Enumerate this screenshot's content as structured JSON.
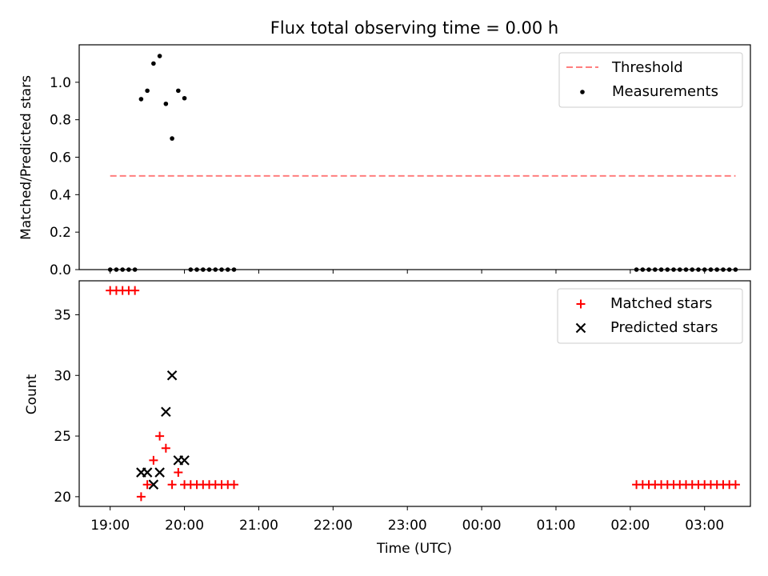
{
  "chart_data": [
    {
      "type": "scatter",
      "title": "Flux total observing time = 0.00 h",
      "ylabel": "Matched/Predicted stars",
      "xlabel": "",
      "x_ticks": [
        "19:00",
        "20:00",
        "21:00",
        "22:00",
        "23:00",
        "00:00",
        "01:00",
        "02:00",
        "03:00"
      ],
      "ylim": [
        0,
        1.2
      ],
      "y_ticks": [
        "0.0",
        "0.2",
        "0.4",
        "0.6",
        "0.8",
        "1.0"
      ],
      "legend_position": "top-right",
      "threshold": {
        "name": "Threshold",
        "y": 0.5,
        "x_start": "19:00",
        "x_end": "03:25",
        "color": "#ff7f7f",
        "style": "dashed"
      },
      "series": [
        {
          "name": "Measurements",
          "color": "#000000",
          "marker": "dot",
          "points": [
            [
              "19:00",
              0.0
            ],
            [
              "19:05",
              0.0
            ],
            [
              "19:10",
              0.0
            ],
            [
              "19:15",
              0.0
            ],
            [
              "19:20",
              0.0
            ],
            [
              "19:25",
              0.91
            ],
            [
              "19:30",
              0.955
            ],
            [
              "19:35",
              1.1
            ],
            [
              "19:40",
              1.14
            ],
            [
              "19:45",
              0.885
            ],
            [
              "19:50",
              0.7
            ],
            [
              "19:55",
              0.955
            ],
            [
              "20:00",
              0.915
            ],
            [
              "20:05",
              0.0
            ],
            [
              "20:10",
              0.0
            ],
            [
              "20:15",
              0.0
            ],
            [
              "20:20",
              0.0
            ],
            [
              "20:25",
              0.0
            ],
            [
              "20:30",
              0.0
            ],
            [
              "20:35",
              0.0
            ],
            [
              "20:40",
              0.0
            ],
            [
              "02:05",
              0.0
            ],
            [
              "02:10",
              0.0
            ],
            [
              "02:15",
              0.0
            ],
            [
              "02:20",
              0.0
            ],
            [
              "02:25",
              0.0
            ],
            [
              "02:30",
              0.0
            ],
            [
              "02:35",
              0.0
            ],
            [
              "02:40",
              0.0
            ],
            [
              "02:45",
              0.0
            ],
            [
              "02:50",
              0.0
            ],
            [
              "02:55",
              0.0
            ],
            [
              "03:00",
              0.0
            ],
            [
              "03:05",
              0.0
            ],
            [
              "03:10",
              0.0
            ],
            [
              "03:15",
              0.0
            ],
            [
              "03:20",
              0.0
            ],
            [
              "03:25",
              0.0
            ]
          ]
        }
      ]
    },
    {
      "type": "scatter",
      "title": "",
      "ylabel": "Count",
      "xlabel": "Time (UTC)",
      "x_ticks": [
        "19:00",
        "20:00",
        "21:00",
        "22:00",
        "23:00",
        "00:00",
        "01:00",
        "02:00",
        "03:00"
      ],
      "ylim": [
        19.2,
        37.8
      ],
      "y_ticks": [
        "20",
        "25",
        "30",
        "35"
      ],
      "legend_position": "top-right",
      "series": [
        {
          "name": "Matched stars",
          "color": "#ff0000",
          "marker": "plus",
          "points": [
            [
              "19:00",
              37
            ],
            [
              "19:05",
              37
            ],
            [
              "19:10",
              37
            ],
            [
              "19:15",
              37
            ],
            [
              "19:20",
              37
            ],
            [
              "19:25",
              20
            ],
            [
              "19:30",
              21
            ],
            [
              "19:35",
              23
            ],
            [
              "19:40",
              25
            ],
            [
              "19:45",
              24
            ],
            [
              "19:50",
              21
            ],
            [
              "19:55",
              22
            ],
            [
              "20:00",
              21
            ],
            [
              "20:05",
              21
            ],
            [
              "20:10",
              21
            ],
            [
              "20:15",
              21
            ],
            [
              "20:20",
              21
            ],
            [
              "20:25",
              21
            ],
            [
              "20:30",
              21
            ],
            [
              "20:35",
              21
            ],
            [
              "20:40",
              21
            ],
            [
              "02:05",
              21
            ],
            [
              "02:10",
              21
            ],
            [
              "02:15",
              21
            ],
            [
              "02:20",
              21
            ],
            [
              "02:25",
              21
            ],
            [
              "02:30",
              21
            ],
            [
              "02:35",
              21
            ],
            [
              "02:40",
              21
            ],
            [
              "02:45",
              21
            ],
            [
              "02:50",
              21
            ],
            [
              "02:55",
              21
            ],
            [
              "03:00",
              21
            ],
            [
              "03:05",
              21
            ],
            [
              "03:10",
              21
            ],
            [
              "03:15",
              21
            ],
            [
              "03:20",
              21
            ],
            [
              "03:25",
              21
            ]
          ]
        },
        {
          "name": "Predicted stars",
          "color": "#000000",
          "marker": "x",
          "points": [
            [
              "19:25",
              22
            ],
            [
              "19:30",
              22
            ],
            [
              "19:35",
              21
            ],
            [
              "19:40",
              22
            ],
            [
              "19:45",
              27
            ],
            [
              "19:50",
              30
            ],
            [
              "19:55",
              23
            ],
            [
              "20:00",
              23
            ]
          ]
        }
      ]
    }
  ]
}
